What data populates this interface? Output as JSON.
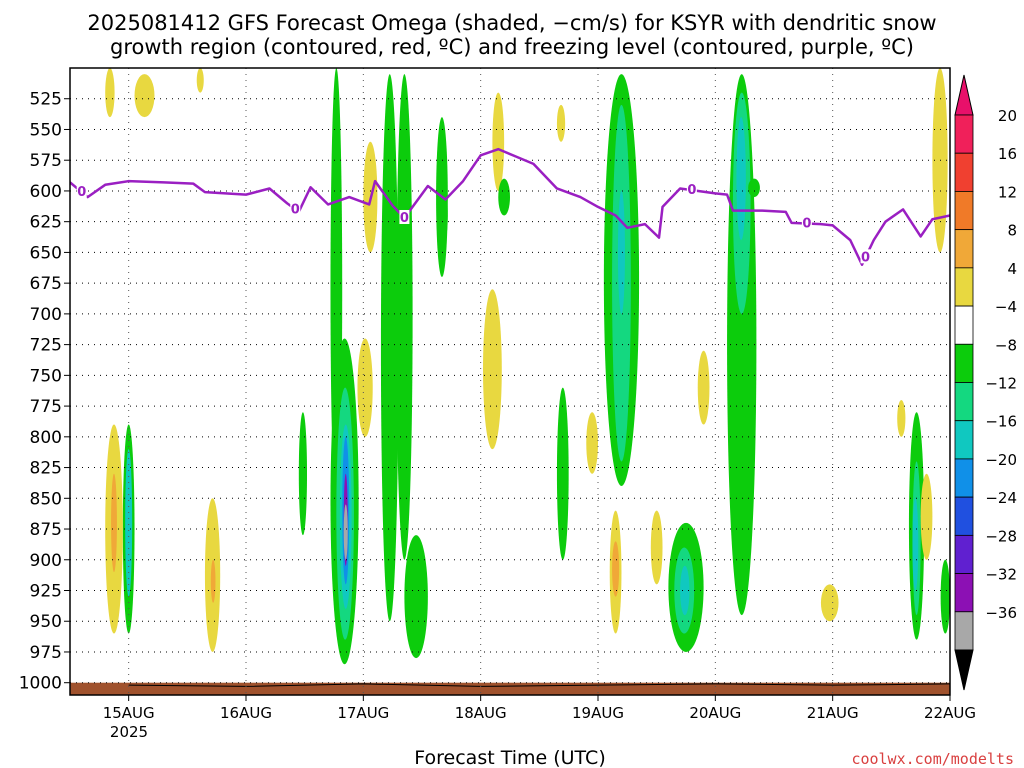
{
  "chart_data": {
    "type": "heatmap",
    "title_line1": "2025081412 GFS Forecast Omega (shaded, −cm/s) for KSYR with dendritic snow",
    "title_line2": "growth region (contoured, red, ºC) and freezing level (contoured, purple, ºC)",
    "xlabel": "Forecast Time (UTC)",
    "credit": "coolwx.com/modelts",
    "x_ticks": [
      "15AUG",
      "16AUG",
      "17AUG",
      "18AUG",
      "19AUG",
      "20AUG",
      "21AUG",
      "22AUG"
    ],
    "x_year_label": "2025",
    "x_range_days": [
      -0.5,
      7.0
    ],
    "y_ticks": [
      525,
      550,
      575,
      600,
      625,
      650,
      675,
      700,
      725,
      750,
      775,
      800,
      825,
      850,
      875,
      900,
      925,
      950,
      975,
      1000
    ],
    "y_range": [
      500,
      1010
    ],
    "y_axis_reversed": true,
    "grid": true,
    "colorbar": {
      "labels": [
        "20",
        "16",
        "12",
        "8",
        "4",
        "−4",
        "−8",
        "−12",
        "−16",
        "−20",
        "−24",
        "−28",
        "−32",
        "−36"
      ],
      "colors": [
        "#f0205a",
        "#f04030",
        "#f07a28",
        "#f0a838",
        "#e8d840",
        "#ffffff",
        "#0ccc0c",
        "#14d880",
        "#10c8c0",
        "#1090e8",
        "#2050e0",
        "#6020d0",
        "#8c10b4",
        "#a8a8a8"
      ],
      "top_arrow_color": "#e8106a",
      "bottom_arrow_color": "#000000"
    },
    "freezing_level": {
      "color": "#9a1fc2",
      "label": "0",
      "label_days": [
        -0.4,
        1.42,
        2.35,
        4.8,
        5.78,
        6.28
      ],
      "series": [
        {
          "day": -0.5,
          "hPa": 593
        },
        {
          "day": -0.35,
          "hPa": 605
        },
        {
          "day": -0.2,
          "hPa": 595
        },
        {
          "day": 0.0,
          "hPa": 592
        },
        {
          "day": 0.3,
          "hPa": 593
        },
        {
          "day": 0.55,
          "hPa": 594
        },
        {
          "day": 0.65,
          "hPa": 601
        },
        {
          "day": 1.0,
          "hPa": 603
        },
        {
          "day": 1.2,
          "hPa": 598
        },
        {
          "day": 1.35,
          "hPa": 610
        },
        {
          "day": 1.45,
          "hPa": 617
        },
        {
          "day": 1.55,
          "hPa": 597
        },
        {
          "day": 1.7,
          "hPa": 611
        },
        {
          "day": 1.88,
          "hPa": 605
        },
        {
          "day": 2.05,
          "hPa": 611
        },
        {
          "day": 2.1,
          "hPa": 592
        },
        {
          "day": 2.25,
          "hPa": 612
        },
        {
          "day": 2.35,
          "hPa": 622
        },
        {
          "day": 2.55,
          "hPa": 596
        },
        {
          "day": 2.7,
          "hPa": 607
        },
        {
          "day": 2.85,
          "hPa": 592
        },
        {
          "day": 3.0,
          "hPa": 571
        },
        {
          "day": 3.15,
          "hPa": 566
        },
        {
          "day": 3.3,
          "hPa": 572
        },
        {
          "day": 3.45,
          "hPa": 578
        },
        {
          "day": 3.65,
          "hPa": 598
        },
        {
          "day": 3.85,
          "hPa": 605
        },
        {
          "day": 4.0,
          "hPa": 613
        },
        {
          "day": 4.15,
          "hPa": 620
        },
        {
          "day": 4.25,
          "hPa": 630
        },
        {
          "day": 4.4,
          "hPa": 627
        },
        {
          "day": 4.52,
          "hPa": 638
        },
        {
          "day": 4.55,
          "hPa": 613
        },
        {
          "day": 4.7,
          "hPa": 598
        },
        {
          "day": 5.0,
          "hPa": 602
        },
        {
          "day": 5.1,
          "hPa": 603
        },
        {
          "day": 5.15,
          "hPa": 616
        },
        {
          "day": 5.4,
          "hPa": 616
        },
        {
          "day": 5.6,
          "hPa": 617
        },
        {
          "day": 5.65,
          "hPa": 626
        },
        {
          "day": 5.9,
          "hPa": 627
        },
        {
          "day": 6.0,
          "hPa": 628
        },
        {
          "day": 6.15,
          "hPa": 640
        },
        {
          "day": 6.25,
          "hPa": 660
        },
        {
          "day": 6.35,
          "hPa": 640
        },
        {
          "day": 6.45,
          "hPa": 625
        },
        {
          "day": 6.6,
          "hPa": 615
        },
        {
          "day": 6.75,
          "hPa": 637
        },
        {
          "day": 6.85,
          "hPa": 623
        },
        {
          "day": 7.0,
          "hPa": 620
        }
      ]
    },
    "omega_regions": [
      {
        "name": "Aug16 strong ascent",
        "day_range": [
          1.68,
          1.96
        ],
        "hPa_range": [
          720,
          985
        ],
        "peak": -32
      },
      {
        "name": "Aug17 column",
        "day_range": [
          2.2,
          2.4
        ],
        "hPa_range": [
          505,
          975
        ],
        "peak": -8
      },
      {
        "name": "Aug19 column",
        "day_range": [
          4.05,
          4.35
        ],
        "hPa_range": [
          505,
          840
        ],
        "peak": -12
      },
      {
        "name": "Aug19 low-level",
        "day_range": [
          4.6,
          4.9
        ],
        "hPa_range": [
          870,
          975
        ],
        "peak": -12
      },
      {
        "name": "Aug20 column",
        "day_range": [
          5.1,
          5.35
        ],
        "hPa_range": [
          505,
          945
        ],
        "peak": -12
      },
      {
        "name": "Aug21 low-level",
        "day_range": [
          6.6,
          6.75
        ],
        "hPa_range": [
          780,
          965
        ],
        "peak": -12
      },
      {
        "name": "Aug15 low-level",
        "day_range": [
          -0.05,
          0.05
        ],
        "hPa_range": [
          790,
          960
        ],
        "peak": -12
      }
    ],
    "surface_color": "#a0522d"
  }
}
